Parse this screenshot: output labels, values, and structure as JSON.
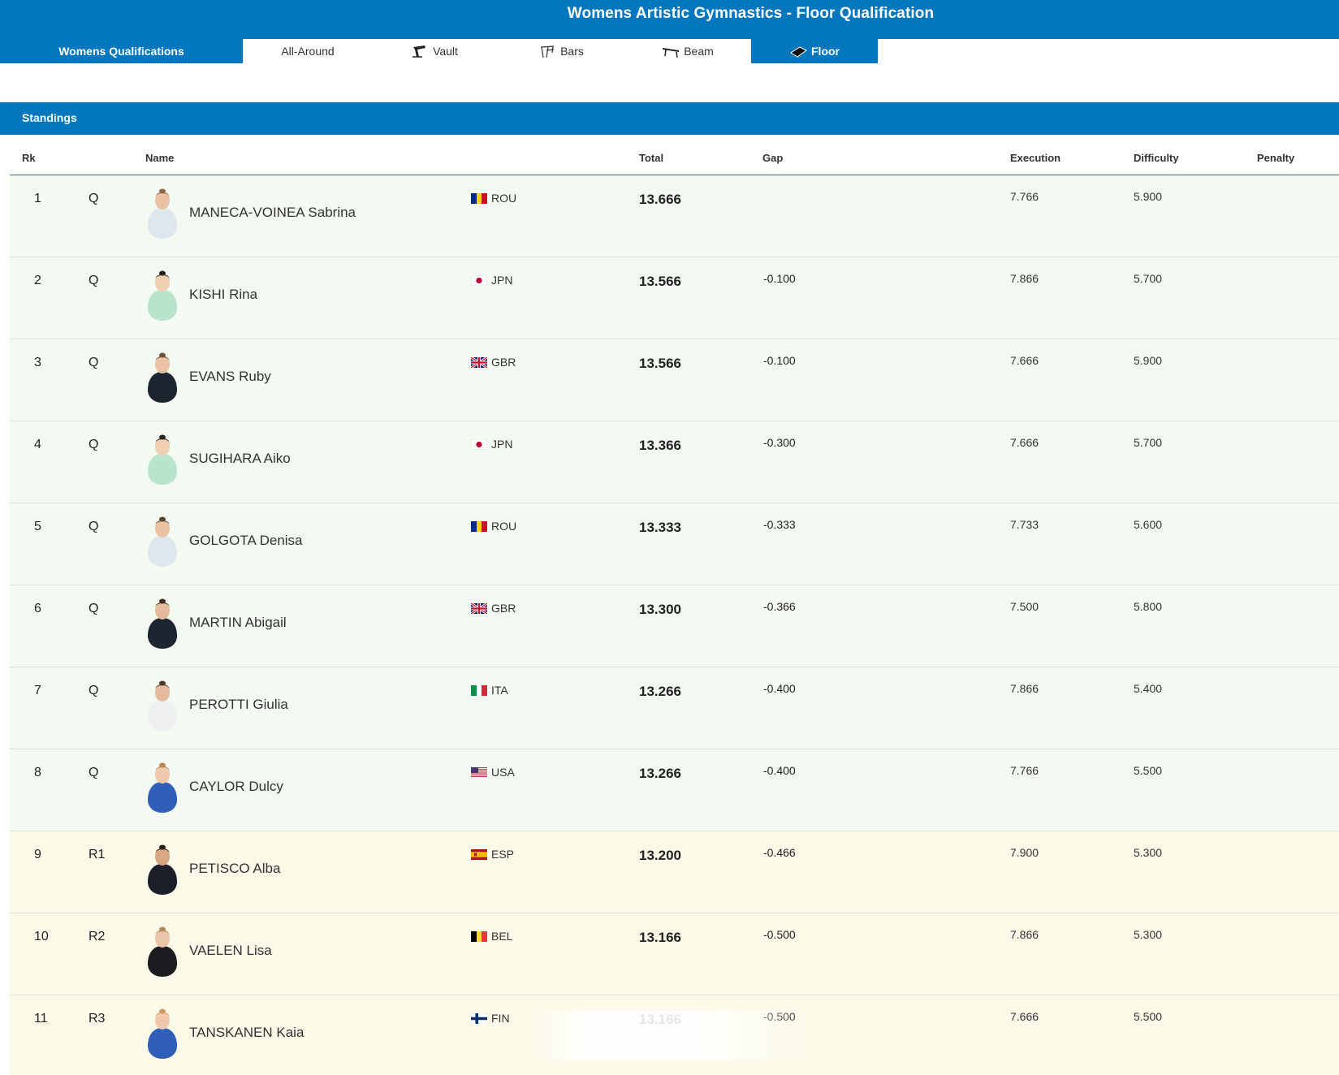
{
  "header": {
    "title": "Womens Artistic Gymnastics - Floor Qualification"
  },
  "tabs": {
    "main": "Womens Qualifications",
    "items": [
      {
        "label": "All-Around",
        "icon": "none"
      },
      {
        "label": "Vault",
        "icon": "vault-icon"
      },
      {
        "label": "Bars",
        "icon": "bars-icon"
      },
      {
        "label": "Beam",
        "icon": "beam-icon"
      },
      {
        "label": "Floor",
        "icon": "floor-icon"
      }
    ],
    "active": "Floor"
  },
  "standings": {
    "title": "Standings",
    "columns": {
      "rank": "Rk",
      "name": "Name",
      "total": "Total",
      "gap": "Gap",
      "execution": "Execution",
      "difficulty": "Difficulty",
      "penalty": "Penalty"
    },
    "rows": [
      {
        "rank": "1",
        "status": "Q",
        "name": "MANECA-VOINEA Sabrina",
        "noc": "ROU",
        "total": "13.666",
        "gap": "",
        "execution": "7.766",
        "difficulty": "5.900",
        "penalty": "",
        "kit": "#dfe6ec",
        "skin": "#e9c2a4",
        "hair": "#8c6a4a"
      },
      {
        "rank": "2",
        "status": "Q",
        "name": "KISHI Rina",
        "noc": "JPN",
        "total": "13.566",
        "gap": "-0.100",
        "execution": "7.866",
        "difficulty": "5.700",
        "penalty": "",
        "kit": "#b9e3cc",
        "skin": "#f0cfb3",
        "hair": "#2a211d"
      },
      {
        "rank": "3",
        "status": "Q",
        "name": "EVANS Ruby",
        "noc": "GBR",
        "total": "13.566",
        "gap": "-0.100",
        "execution": "7.666",
        "difficulty": "5.900",
        "penalty": "",
        "kit": "#1d2530",
        "skin": "#eac3a6",
        "hair": "#6e5138"
      },
      {
        "rank": "4",
        "status": "Q",
        "name": "SUGIHARA Aiko",
        "noc": "JPN",
        "total": "13.366",
        "gap": "-0.300",
        "execution": "7.666",
        "difficulty": "5.700",
        "penalty": "",
        "kit": "#b9e3cc",
        "skin": "#f0cfb3",
        "hair": "#2a211d"
      },
      {
        "rank": "5",
        "status": "Q",
        "name": "GOLGOTA Denisa",
        "noc": "ROU",
        "total": "13.333",
        "gap": "-0.333",
        "execution": "7.733",
        "difficulty": "5.600",
        "penalty": "",
        "kit": "#dfe6ec",
        "skin": "#e9c2a4",
        "hair": "#5b4230"
      },
      {
        "rank": "6",
        "status": "Q",
        "name": "MARTIN Abigail",
        "noc": "GBR",
        "total": "13.300",
        "gap": "-0.366",
        "execution": "7.500",
        "difficulty": "5.800",
        "penalty": "",
        "kit": "#1d2530",
        "skin": "#e6bb9c",
        "hair": "#3d2c22"
      },
      {
        "rank": "7",
        "status": "Q",
        "name": "PEROTTI Giulia",
        "noc": "ITA",
        "total": "13.266",
        "gap": "-0.400",
        "execution": "7.866",
        "difficulty": "5.400",
        "penalty": "",
        "kit": "#eef0f2",
        "skin": "#e6bb9c",
        "hair": "#4a3426"
      },
      {
        "rank": "8",
        "status": "Q",
        "name": "CAYLOR Dulcy",
        "noc": "USA",
        "total": "13.266",
        "gap": "-0.400",
        "execution": "7.766",
        "difficulty": "5.500",
        "penalty": "",
        "kit": "#2f5fb8",
        "skin": "#f0c8ab",
        "hair": "#b8864f"
      },
      {
        "rank": "9",
        "status": "R1",
        "name": "PETISCO Alba",
        "noc": "ESP",
        "total": "13.200",
        "gap": "-0.466",
        "execution": "7.900",
        "difficulty": "5.300",
        "penalty": "",
        "kit": "#1c1f2a",
        "skin": "#d9a783",
        "hair": "#2d1f17"
      },
      {
        "rank": "10",
        "status": "R2",
        "name": "VAELEN Lisa",
        "noc": "BEL",
        "total": "13.166",
        "gap": "-0.500",
        "execution": "7.866",
        "difficulty": "5.300",
        "penalty": "",
        "kit": "#1b1c20",
        "skin": "#ecc6a8",
        "hair": "#b38a5e"
      },
      {
        "rank": "11",
        "status": "R3",
        "name": "TANSKANEN Kaia",
        "noc": "FIN",
        "total": "13.166",
        "gap": "-0.500",
        "execution": "7.666",
        "difficulty": "5.500",
        "penalty": "",
        "kit": "#2f5fb8",
        "skin": "#f0c8ab",
        "hair": "#c79a62"
      }
    ]
  },
  "colors": {
    "brand": "#0277bd",
    "qualified_bg": "#f3faf1",
    "reserve_bg": "#fbf9e7"
  }
}
